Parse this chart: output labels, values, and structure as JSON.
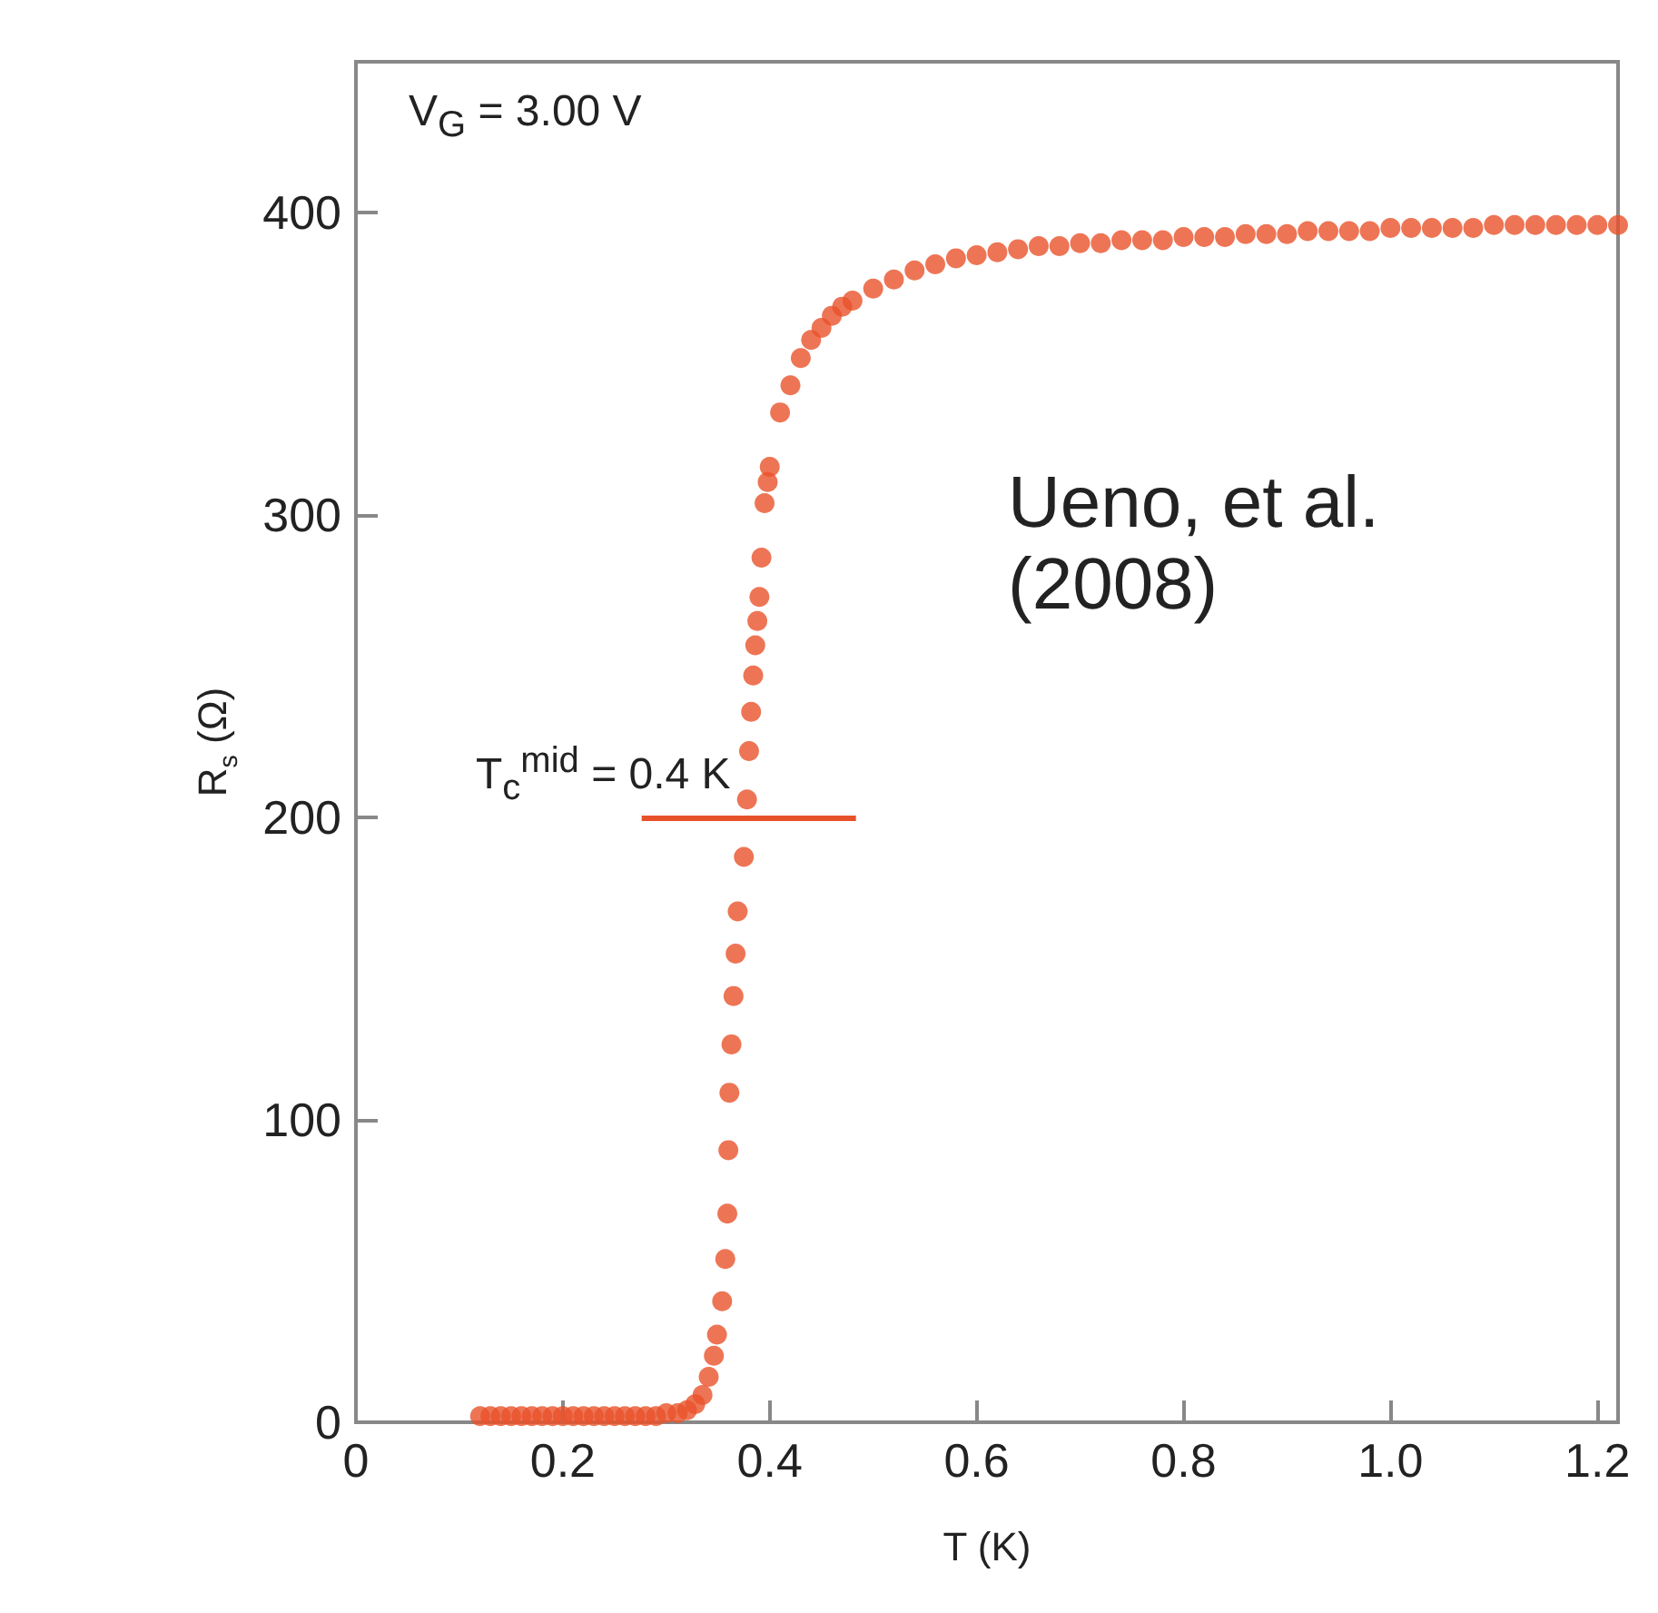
{
  "chart_data": {
    "type": "scatter",
    "xlabel": "T (K)",
    "ylabel": "R$_{s}$ (Ω)",
    "annotations": [
      "V$_{G}$ = 3.00 V",
      "T$_{c}$$^{mid}$ = 0.4 K",
      "Ueno, et al. (2008)"
    ],
    "ref_lines": [
      {
        "axis": "y",
        "value": 200,
        "color": "#e8522a"
      }
    ],
    "series": [
      {
        "color": "#e8522a",
        "x": [
          0.12,
          0.13,
          0.14,
          0.15,
          0.16,
          0.17,
          0.18,
          0.19,
          0.2,
          0.21,
          0.22,
          0.23,
          0.24,
          0.25,
          0.26,
          0.27,
          0.28,
          0.29,
          0.3,
          0.311,
          0.32,
          0.328,
          0.335,
          0.341,
          0.346,
          0.349,
          0.354,
          0.357,
          0.359,
          0.36,
          0.361,
          0.363,
          0.365,
          0.367,
          0.369,
          0.375,
          0.378,
          0.38,
          0.382,
          0.384,
          0.386,
          0.388,
          0.39,
          0.392,
          0.395,
          0.398,
          0.4,
          0.41,
          0.42,
          0.43,
          0.44,
          0.45,
          0.46,
          0.47,
          0.48,
          0.5,
          0.52,
          0.54,
          0.56,
          0.58,
          0.6,
          0.62,
          0.64,
          0.66,
          0.68,
          0.7,
          0.72,
          0.74,
          0.76,
          0.78,
          0.8,
          0.82,
          0.84,
          0.86,
          0.88,
          0.9,
          0.92,
          0.94,
          0.96,
          0.98,
          1.0,
          1.02,
          1.04,
          1.06,
          1.08,
          1.1,
          1.12,
          1.14,
          1.16,
          1.18,
          1.2,
          1.22
        ],
        "values": [
          2,
          2,
          2,
          2,
          2,
          2,
          2,
          2,
          2,
          2,
          2,
          2,
          2,
          2,
          2,
          2,
          2,
          2,
          3,
          3,
          4,
          6,
          9,
          15,
          22,
          29,
          40,
          54,
          69,
          90,
          109,
          125,
          141,
          155,
          169,
          187,
          206,
          222,
          235,
          247,
          257,
          265,
          273,
          286,
          304,
          311,
          316,
          334,
          343,
          352,
          358,
          362,
          366,
          369,
          371,
          375,
          378,
          381,
          383,
          385,
          386,
          387,
          388,
          389,
          389,
          390,
          390,
          391,
          391,
          391,
          392,
          392,
          392,
          393,
          393,
          393,
          394,
          394,
          394,
          394,
          395,
          395,
          395,
          395,
          395,
          396,
          396,
          396,
          396,
          396,
          396,
          396
        ]
      }
    ],
    "xlim": [
      0,
      1.22
    ],
    "ylim": [
      0,
      450
    ],
    "xticks": [
      0,
      0.2,
      0.4,
      0.6,
      0.8,
      {
        "value": 1,
        "label": "1.0"
      },
      1.2
    ],
    "yticks": [
      0,
      100,
      200,
      300,
      400
    ],
    "grid": false,
    "marker": "circle"
  }
}
